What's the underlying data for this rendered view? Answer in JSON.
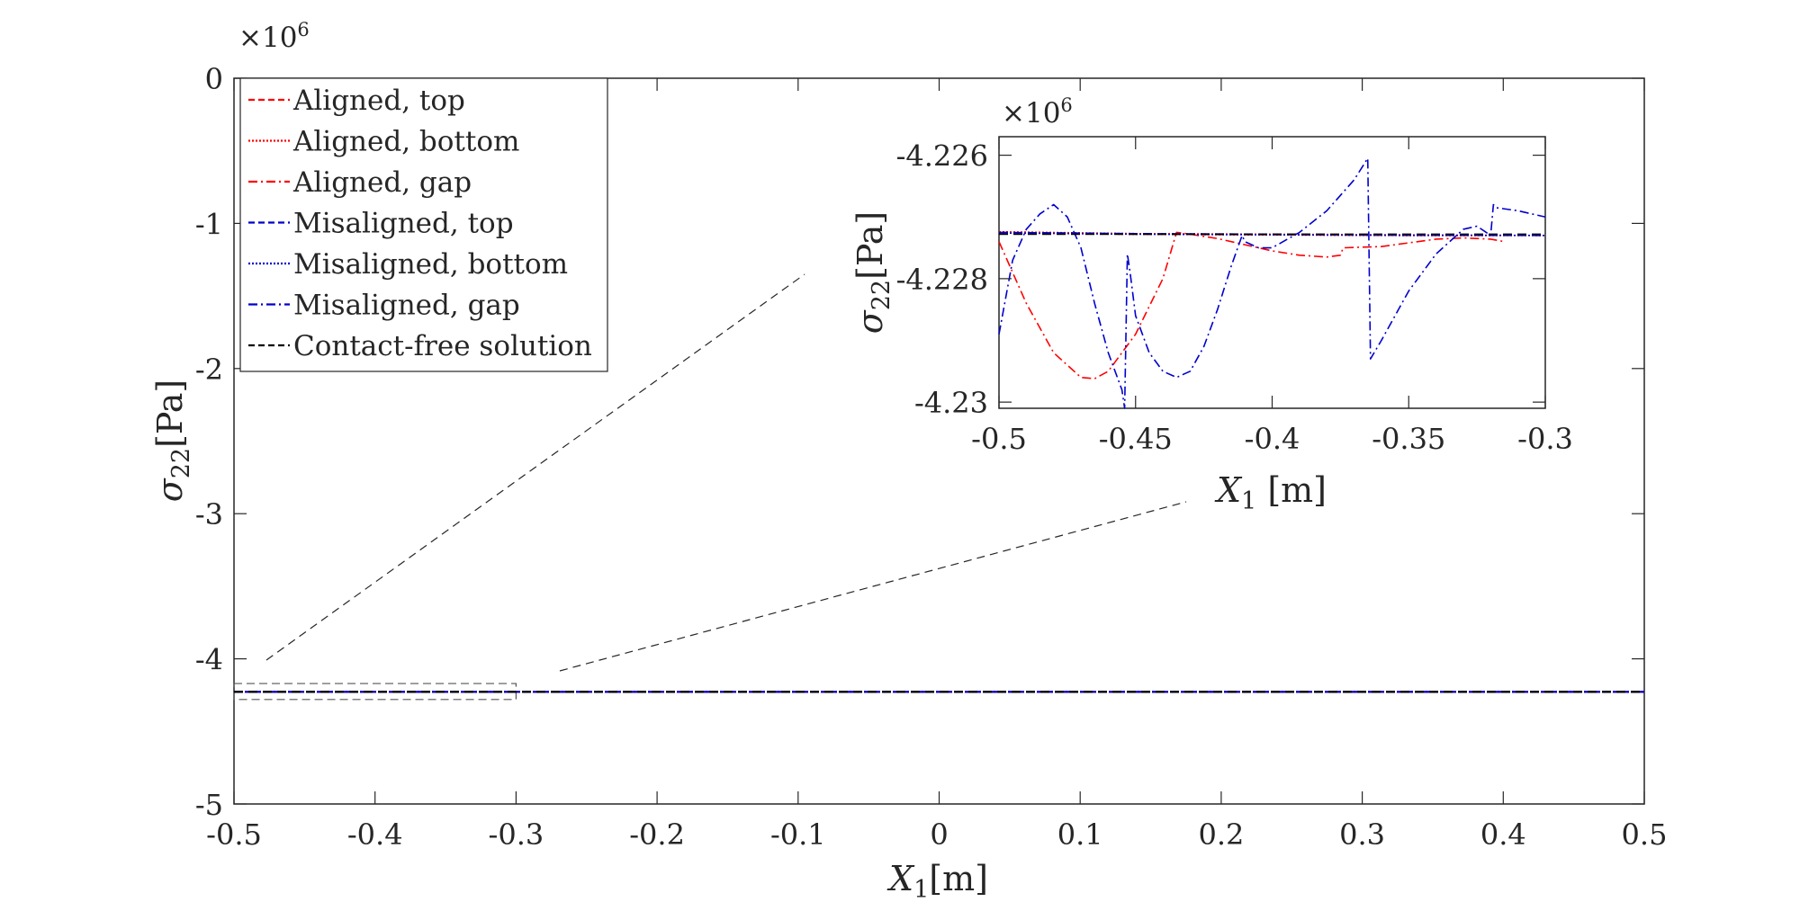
{
  "chart_data": [
    {
      "id": "main",
      "type": "line",
      "xlabel": "X1[m]",
      "ylabel": "σ22[Pa]",
      "y_exponent_label": "×10^6",
      "xlim": [
        -0.5,
        0.5
      ],
      "ylim": [
        -5,
        0
      ],
      "y_scale": 1000000,
      "x_ticks": [
        -0.5,
        -0.4,
        -0.3,
        -0.2,
        -0.1,
        0,
        0.1,
        0.2,
        0.3,
        0.4,
        0.5
      ],
      "x_tick_labels": [
        "-0.5",
        "-0.4",
        "-0.3",
        "-0.2",
        "-0.1",
        "0",
        "0.1",
        "0.2",
        "0.3",
        "0.4",
        "0.5"
      ],
      "y_ticks": [
        0,
        -1,
        -2,
        -3,
        -4,
        -5
      ],
      "y_tick_labels": [
        "0",
        "-1",
        "-2",
        "-3",
        "-4",
        "-5"
      ],
      "grid": false,
      "legend_position": "top-left",
      "series": [
        {
          "name": "Aligned, top",
          "color": "#ff0000",
          "dash": "dashed",
          "x": [
            -0.5,
            0.5
          ],
          "y": [
            -4.2273,
            -4.2273
          ]
        },
        {
          "name": "Aligned, bottom",
          "color": "#ff0000",
          "dash": "dotted",
          "x": [
            -0.5,
            0.5
          ],
          "y": [
            -4.2273,
            -4.2273
          ]
        },
        {
          "name": "Aligned, gap",
          "color": "#ff0000",
          "dash": "dashdot",
          "x": [
            -0.5,
            0.5
          ],
          "y": [
            -4.2273,
            -4.2273
          ]
        },
        {
          "name": "Misaligned, top",
          "color": "#0000cc",
          "dash": "dashed",
          "x": [
            -0.5,
            0.5
          ],
          "y": [
            -4.2273,
            -4.2273
          ]
        },
        {
          "name": "Misaligned, bottom",
          "color": "#0000cc",
          "dash": "dotted",
          "x": [
            -0.5,
            0.5
          ],
          "y": [
            -4.2273,
            -4.2273
          ]
        },
        {
          "name": "Misaligned, gap",
          "color": "#0000cc",
          "dash": "dashdot",
          "x": [
            -0.5,
            0.5
          ],
          "y": [
            -4.2273,
            -4.2273
          ]
        },
        {
          "name": "Contact-free solution",
          "color": "#000000",
          "dash": "dashed",
          "x": [
            -0.5,
            0.5
          ],
          "y": [
            -4.2273,
            -4.2273
          ]
        }
      ],
      "zoom_box": {
        "x": [
          -0.5,
          -0.3
        ],
        "y": [
          -4.28,
          -4.17
        ]
      }
    },
    {
      "id": "inset",
      "type": "line",
      "xlabel": "X1 [m]",
      "ylabel": "σ22[Pa]",
      "y_exponent_label": "×10^6",
      "xlim": [
        -0.5,
        -0.3
      ],
      "ylim": [
        -4.2301,
        -4.2257
      ],
      "y_scale": 1000000,
      "x_ticks": [
        -0.5,
        -0.45,
        -0.4,
        -0.35,
        -0.3
      ],
      "x_tick_labels": [
        "-0.5",
        "-0.45",
        "-0.4",
        "-0.35",
        "-0.3"
      ],
      "y_ticks": [
        -4.226,
        -4.228,
        -4.23
      ],
      "y_tick_labels": [
        "-4.226",
        "-4.228",
        "-4.23"
      ],
      "grid": false,
      "series": [
        {
          "name": "Aligned, top",
          "color": "#ff0000",
          "dash": "dashed",
          "x": [
            -0.5,
            -0.45,
            -0.4,
            -0.35,
            -0.3
          ],
          "y": [
            -4.22726,
            -4.22728,
            -4.22729,
            -4.2273,
            -4.2273
          ]
        },
        {
          "name": "Aligned, bottom",
          "color": "#ff0000",
          "dash": "dotted",
          "x": [
            -0.5,
            -0.45,
            -0.4,
            -0.35,
            -0.3
          ],
          "y": [
            -4.22724,
            -4.22727,
            -4.22728,
            -4.22729,
            -4.2273
          ]
        },
        {
          "name": "Aligned, gap",
          "color": "#ff0000",
          "dash": "dashdot",
          "x": [
            -0.5,
            -0.49,
            -0.48,
            -0.47,
            -0.465,
            -0.46,
            -0.45,
            -0.44,
            -0.435,
            -0.4349,
            -0.43,
            -0.42,
            -0.41,
            -0.4,
            -0.39,
            -0.38,
            -0.375,
            -0.374,
            -0.36,
            -0.35,
            -0.34,
            -0.33,
            -0.32,
            -0.315
          ],
          "y": [
            -4.2274,
            -4.2284,
            -4.2292,
            -4.2296,
            -4.22962,
            -4.2295,
            -4.2289,
            -4.228,
            -4.22725,
            -4.22725,
            -4.22728,
            -4.22735,
            -4.22745,
            -4.22755,
            -4.22762,
            -4.22765,
            -4.22762,
            -4.2275,
            -4.22748,
            -4.22742,
            -4.22736,
            -4.22734,
            -4.22736,
            -4.2274
          ]
        },
        {
          "name": "Misaligned, top",
          "color": "#0000cc",
          "dash": "dashed",
          "x": [
            -0.5,
            -0.45,
            -0.4,
            -0.35,
            -0.3
          ],
          "y": [
            -4.22725,
            -4.22727,
            -4.22728,
            -4.22729,
            -4.2273
          ]
        },
        {
          "name": "Misaligned, bottom",
          "color": "#0000cc",
          "dash": "dotted",
          "x": [
            -0.5,
            -0.45,
            -0.4,
            -0.35,
            -0.3
          ],
          "y": [
            -4.22726,
            -4.22728,
            -4.22729,
            -4.2273,
            -4.2273
          ]
        },
        {
          "name": "Misaligned, gap",
          "color": "#0000cc",
          "dash": "dashdot",
          "x": [
            -0.5,
            -0.495,
            -0.49,
            -0.485,
            -0.48,
            -0.475,
            -0.47,
            -0.465,
            -0.46,
            -0.455,
            -0.454,
            -0.453,
            -0.452,
            -0.45,
            -0.445,
            -0.44,
            -0.435,
            -0.43,
            -0.425,
            -0.42,
            -0.415,
            -0.411,
            -0.41,
            -0.405,
            -0.4,
            -0.39,
            -0.38,
            -0.37,
            -0.365,
            -0.364,
            -0.36,
            -0.35,
            -0.34,
            -0.33,
            -0.325,
            -0.32,
            -0.319,
            -0.318,
            -0.31,
            -0.3
          ],
          "y": [
            -4.2289,
            -4.2277,
            -4.2272,
            -4.22695,
            -4.2268,
            -4.227,
            -4.2275,
            -4.2284,
            -4.2292,
            -4.2298,
            -4.2301,
            -4.2276,
            -4.2279,
            -4.2286,
            -4.2292,
            -4.2295,
            -4.2296,
            -4.2295,
            -4.2291,
            -4.2285,
            -4.2278,
            -4.2273,
            -4.2274,
            -4.2275,
            -4.2275,
            -4.22725,
            -4.2269,
            -4.2264,
            -4.22605,
            -4.2293,
            -4.229,
            -4.2282,
            -4.2276,
            -4.2272,
            -4.22715,
            -4.2273,
            -4.2268,
            -4.22685,
            -4.2269,
            -4.227
          ]
        },
        {
          "name": "Contact-free solution",
          "color": "#000000",
          "dash": "dashed",
          "x": [
            -0.5,
            -0.3
          ],
          "y": [
            -4.22728,
            -4.22728
          ]
        }
      ]
    }
  ]
}
